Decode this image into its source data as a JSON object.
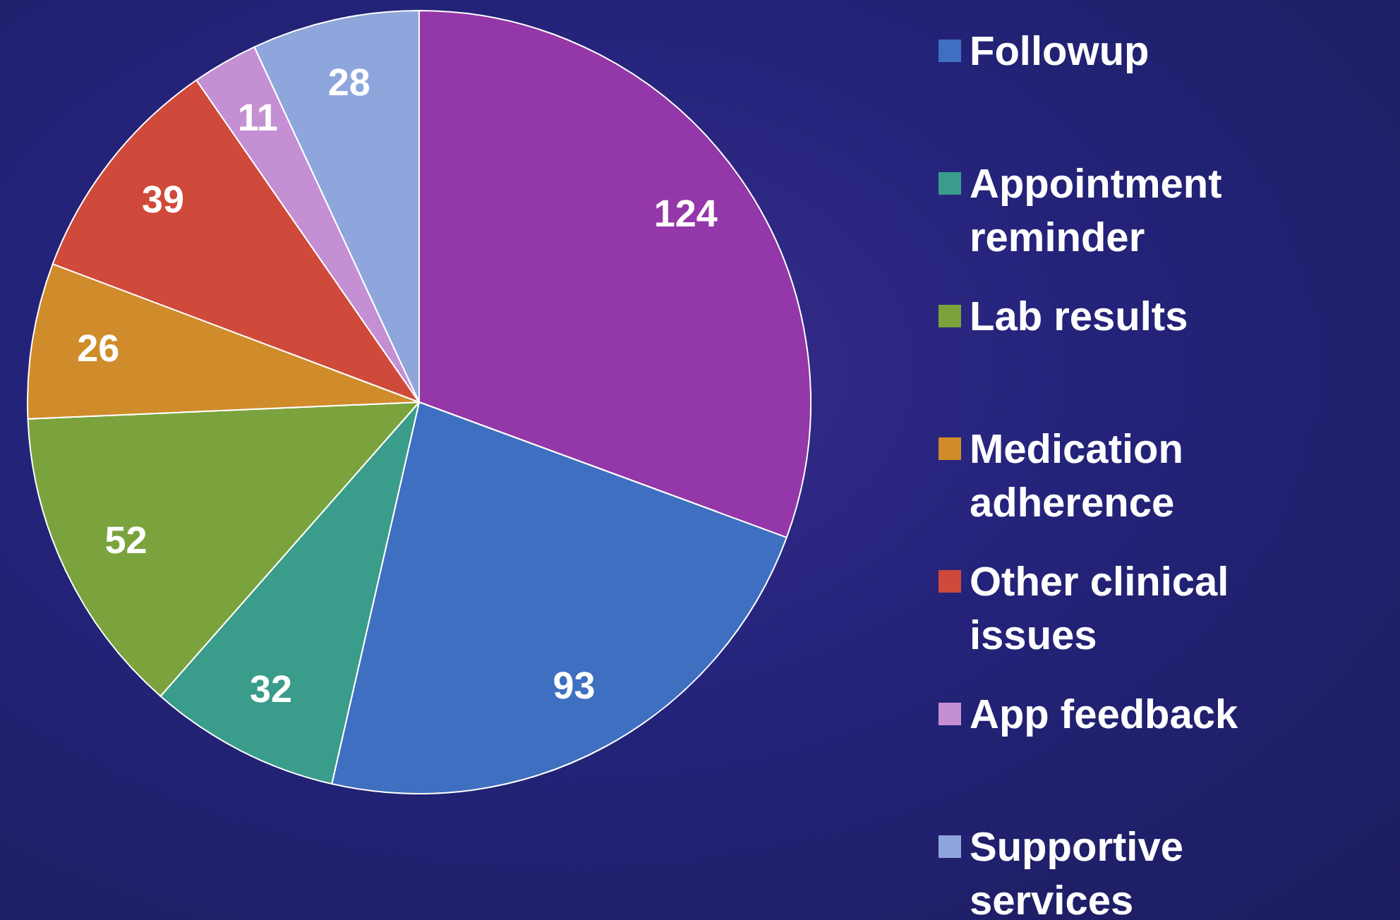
{
  "chart_data": {
    "type": "pie",
    "categories": [
      null,
      "Followup",
      "Appointment reminder",
      "Lab results",
      "Medication adherence",
      "Other clinical issues",
      "App feedback",
      "Supportive services"
    ],
    "values": [
      124,
      93,
      32,
      52,
      26,
      39,
      11,
      28
    ],
    "colors": [
      "#9437a8",
      "#3e6fc0",
      "#3a9c8a",
      "#7aa33e",
      "#d08c2b",
      "#cf4a3a",
      "#c58fd4",
      "#8ea6dc"
    ],
    "data_labels": true,
    "legend": "right"
  }
}
